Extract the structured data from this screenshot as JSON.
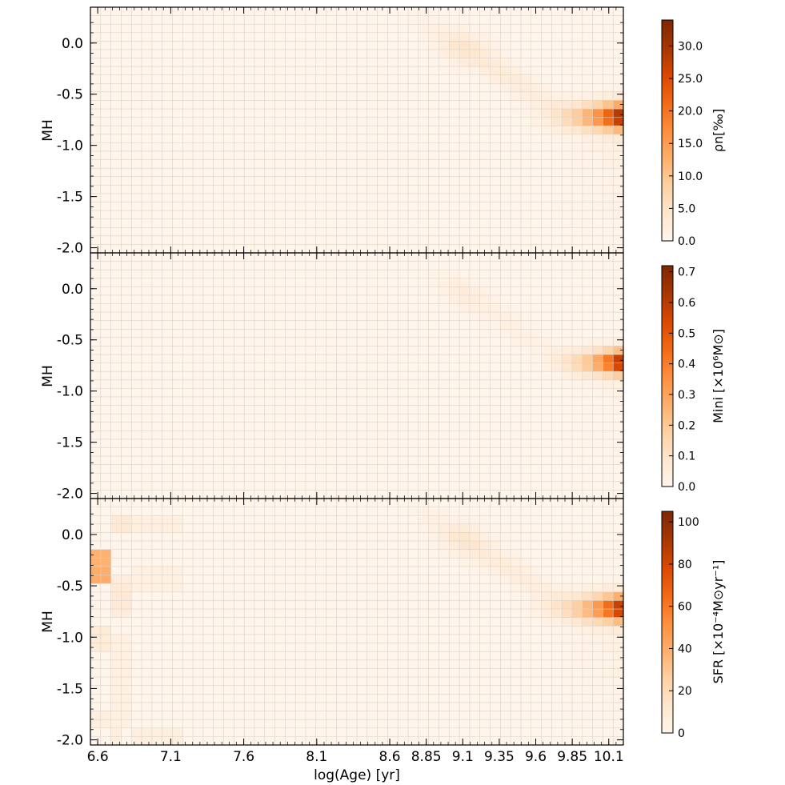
{
  "chart_data": [
    {
      "type": "heatmap",
      "panel": "top",
      "xlabel": "",
      "ylabel": "MH",
      "colorbar_label": "ρn[‰]",
      "colorbar_ticks": [
        "0.0",
        "5.0",
        "10.0",
        "15.0",
        "20.0",
        "25.0",
        "30.0"
      ],
      "colorbar_range": [
        0,
        34
      ],
      "colormap": [
        "#fff5eb",
        "#fee6ce",
        "#fdd0a2",
        "#fdae6b",
        "#fd8d3c",
        "#f16913",
        "#d94801",
        "#a63603",
        "#7f2704"
      ],
      "yticks": [
        "0.0",
        "-0.5",
        "-1.0",
        "-1.5",
        "-2.0"
      ],
      "ylim": [
        -2.05,
        0.35
      ],
      "grid": true,
      "features": [
        {
          "log_age": 10.15,
          "mh": -0.75,
          "value": 33.5
        },
        {
          "log_age": 10.1,
          "mh": -0.7,
          "value": 28
        },
        {
          "log_age": 10.05,
          "mh": -0.7,
          "value": 22
        },
        {
          "log_age": 10.0,
          "mh": -0.7,
          "value": 16
        },
        {
          "log_age": 9.9,
          "mh": -0.7,
          "value": 9
        },
        {
          "log_age": 9.75,
          "mh": -0.65,
          "value": 5
        },
        {
          "log_age": 9.5,
          "mh": -0.55,
          "value": 2.5
        },
        {
          "log_age": 9.1,
          "mh": -0.05,
          "value": 2.5
        }
      ]
    },
    {
      "type": "heatmap",
      "panel": "middle",
      "xlabel": "",
      "ylabel": "MH",
      "colorbar_label": "Mini [×10⁶M⊙]",
      "colorbar_ticks": [
        "0.0",
        "0.1",
        "0.2",
        "0.3",
        "0.4",
        "0.5",
        "0.6",
        "0.7"
      ],
      "colorbar_range": [
        0,
        0.72
      ],
      "yticks": [
        "0.0",
        "-0.5",
        "-1.0",
        "-1.5",
        "-2.0"
      ],
      "ylim": [
        -2.05,
        0.35
      ],
      "grid": true,
      "features": [
        {
          "log_age": 10.15,
          "mh": -0.75,
          "value": 0.71
        },
        {
          "log_age": 10.1,
          "mh": -0.7,
          "value": 0.55
        },
        {
          "log_age": 10.05,
          "mh": -0.7,
          "value": 0.42
        },
        {
          "log_age": 10.0,
          "mh": -0.7,
          "value": 0.28
        },
        {
          "log_age": 9.9,
          "mh": -0.7,
          "value": 0.12
        },
        {
          "log_age": 9.75,
          "mh": -0.65,
          "value": 0.05
        }
      ]
    },
    {
      "type": "heatmap",
      "panel": "bottom",
      "xlabel": "log(Age) [yr]",
      "ylabel": "MH",
      "colorbar_label": "SFR [×10⁻⁴M⊙yr⁻¹]",
      "colorbar_ticks": [
        "0",
        "20",
        "40",
        "60",
        "80",
        "100"
      ],
      "colorbar_range": [
        0,
        105
      ],
      "xticks": [
        "6.6",
        "7.1",
        "7.6",
        "8.1",
        "8.6",
        "8.85",
        "9.1",
        "9.35",
        "9.6",
        "9.85",
        "10.1"
      ],
      "yticks": [
        "0.0",
        "-0.5",
        "-1.0",
        "-1.5",
        "-2.0"
      ],
      "ylim": [
        -2.05,
        0.35
      ],
      "grid": true,
      "features": [
        {
          "log_age": 10.15,
          "mh": -0.75,
          "value": 104
        },
        {
          "log_age": 10.1,
          "mh": -0.7,
          "value": 90
        },
        {
          "log_age": 10.05,
          "mh": -0.7,
          "value": 75
        },
        {
          "log_age": 10.0,
          "mh": -0.7,
          "value": 58
        },
        {
          "log_age": 9.9,
          "mh": -0.7,
          "value": 35
        },
        {
          "log_age": 9.75,
          "mh": -0.65,
          "value": 20
        },
        {
          "log_age": 9.5,
          "mh": -0.55,
          "value": 10
        },
        {
          "log_age": 9.1,
          "mh": -0.05,
          "value": 10
        },
        {
          "log_age": 6.6,
          "mh": -0.2,
          "value": 38
        },
        {
          "log_age": 6.6,
          "mh": -0.4,
          "value": 40
        },
        {
          "log_age": 6.75,
          "mh": 0.1,
          "value": 12
        },
        {
          "log_age": 6.75,
          "mh": -0.6,
          "value": 12
        },
        {
          "log_age": 6.6,
          "mh": -1.0,
          "value": 10
        }
      ]
    }
  ]
}
